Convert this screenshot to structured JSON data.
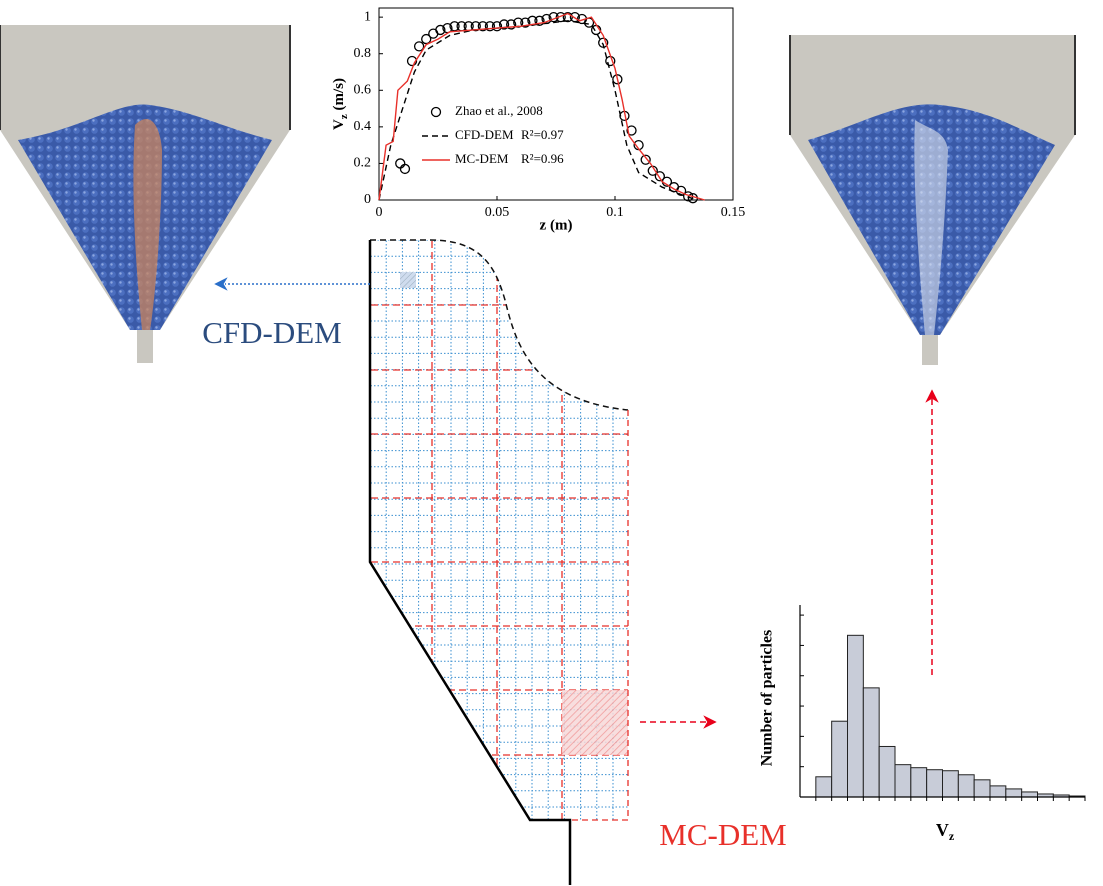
{
  "labels": {
    "cfd_dem": "CFD-DEM",
    "mc_dem": "MC-DEM"
  },
  "chart_data": [
    {
      "type": "line",
      "x_label": "z (m)",
      "y_label": {
        "main": "V",
        "sub": "z",
        "unit": " (m/s)"
      },
      "xlim": [
        0,
        0.15
      ],
      "xticks": [
        0,
        0.05,
        0.1,
        0.15
      ],
      "ylim": [
        0,
        1.05
      ],
      "yticks": [
        0,
        0.2,
        0.4,
        0.6,
        0.8,
        1
      ],
      "series": [
        {
          "name": "Zhao et al., 2008",
          "marker": "circle",
          "color": "#000000",
          "x": [
            0.009,
            0.011,
            0.014,
            0.017,
            0.02,
            0.023,
            0.026,
            0.029,
            0.032,
            0.035,
            0.038,
            0.041,
            0.044,
            0.047,
            0.05,
            0.053,
            0.056,
            0.059,
            0.062,
            0.065,
            0.068,
            0.071,
            0.074,
            0.077,
            0.08,
            0.083,
            0.086,
            0.089,
            0.092,
            0.095,
            0.098,
            0.101,
            0.104,
            0.107,
            0.11,
            0.113,
            0.116,
            0.119,
            0.122,
            0.125,
            0.128,
            0.131,
            0.133
          ],
          "values": [
            0.2,
            0.17,
            0.76,
            0.84,
            0.88,
            0.91,
            0.93,
            0.94,
            0.95,
            0.95,
            0.95,
            0.95,
            0.95,
            0.95,
            0.95,
            0.96,
            0.96,
            0.97,
            0.97,
            0.98,
            0.98,
            0.99,
            1.0,
            1.0,
            1.0,
            1.0,
            0.99,
            0.97,
            0.93,
            0.86,
            0.76,
            0.66,
            0.46,
            0.38,
            0.3,
            0.22,
            0.16,
            0.13,
            0.1,
            0.07,
            0.05,
            0.02,
            0.01
          ]
        },
        {
          "name": "CFD-DEM",
          "r2_label": "R²=0.97",
          "dash": true,
          "color": "#000000",
          "x": [
            0,
            0.005,
            0.01,
            0.015,
            0.02,
            0.03,
            0.04,
            0.06,
            0.08,
            0.09,
            0.095,
            0.1,
            0.105,
            0.11,
            0.12,
            0.13,
            0.135
          ],
          "values": [
            0,
            0.3,
            0.5,
            0.7,
            0.82,
            0.9,
            0.93,
            0.95,
            0.98,
            0.96,
            0.85,
            0.6,
            0.3,
            0.15,
            0.07,
            0.02,
            0
          ]
        },
        {
          "name": "MC-DEM",
          "r2_label": "R²=0.96",
          "dash": false,
          "color": "#e8302a",
          "x": [
            0,
            0.003,
            0.006,
            0.008,
            0.012,
            0.015,
            0.02,
            0.025,
            0.03,
            0.04,
            0.05,
            0.06,
            0.07,
            0.08,
            0.085,
            0.09,
            0.095,
            0.1,
            0.103,
            0.106,
            0.11,
            0.115,
            0.12,
            0.125,
            0.13,
            0.138
          ],
          "values": [
            0,
            0.3,
            0.32,
            0.6,
            0.65,
            0.75,
            0.85,
            0.88,
            0.92,
            0.93,
            0.94,
            0.95,
            0.97,
            1.02,
            0.98,
            1.0,
            0.9,
            0.72,
            0.55,
            0.35,
            0.28,
            0.2,
            0.1,
            0.06,
            0.03,
            0
          ]
        }
      ]
    },
    {
      "type": "histogram",
      "x_label": {
        "main": "V",
        "sub": "z"
      },
      "y_label": "Number of particles",
      "color": "#c8ccd8",
      "bins": [
        0,
        1,
        2,
        3,
        4,
        5,
        6,
        7,
        8,
        9,
        10,
        11,
        12,
        13,
        14,
        15,
        16,
        17
      ],
      "values": [
        20,
        75,
        160,
        108,
        50,
        32,
        29,
        27,
        26,
        22,
        17,
        11,
        8,
        5,
        3,
        2,
        1
      ],
      "xlim": [
        -1,
        17
      ],
      "ylim": [
        0,
        190
      ],
      "xticks": [
        0,
        1,
        2,
        3,
        4,
        5,
        6,
        7,
        8,
        9,
        10,
        11,
        12,
        13,
        14,
        15,
        16,
        17
      ],
      "yticks": [
        0,
        30,
        60,
        90,
        120,
        150,
        180
      ]
    }
  ]
}
